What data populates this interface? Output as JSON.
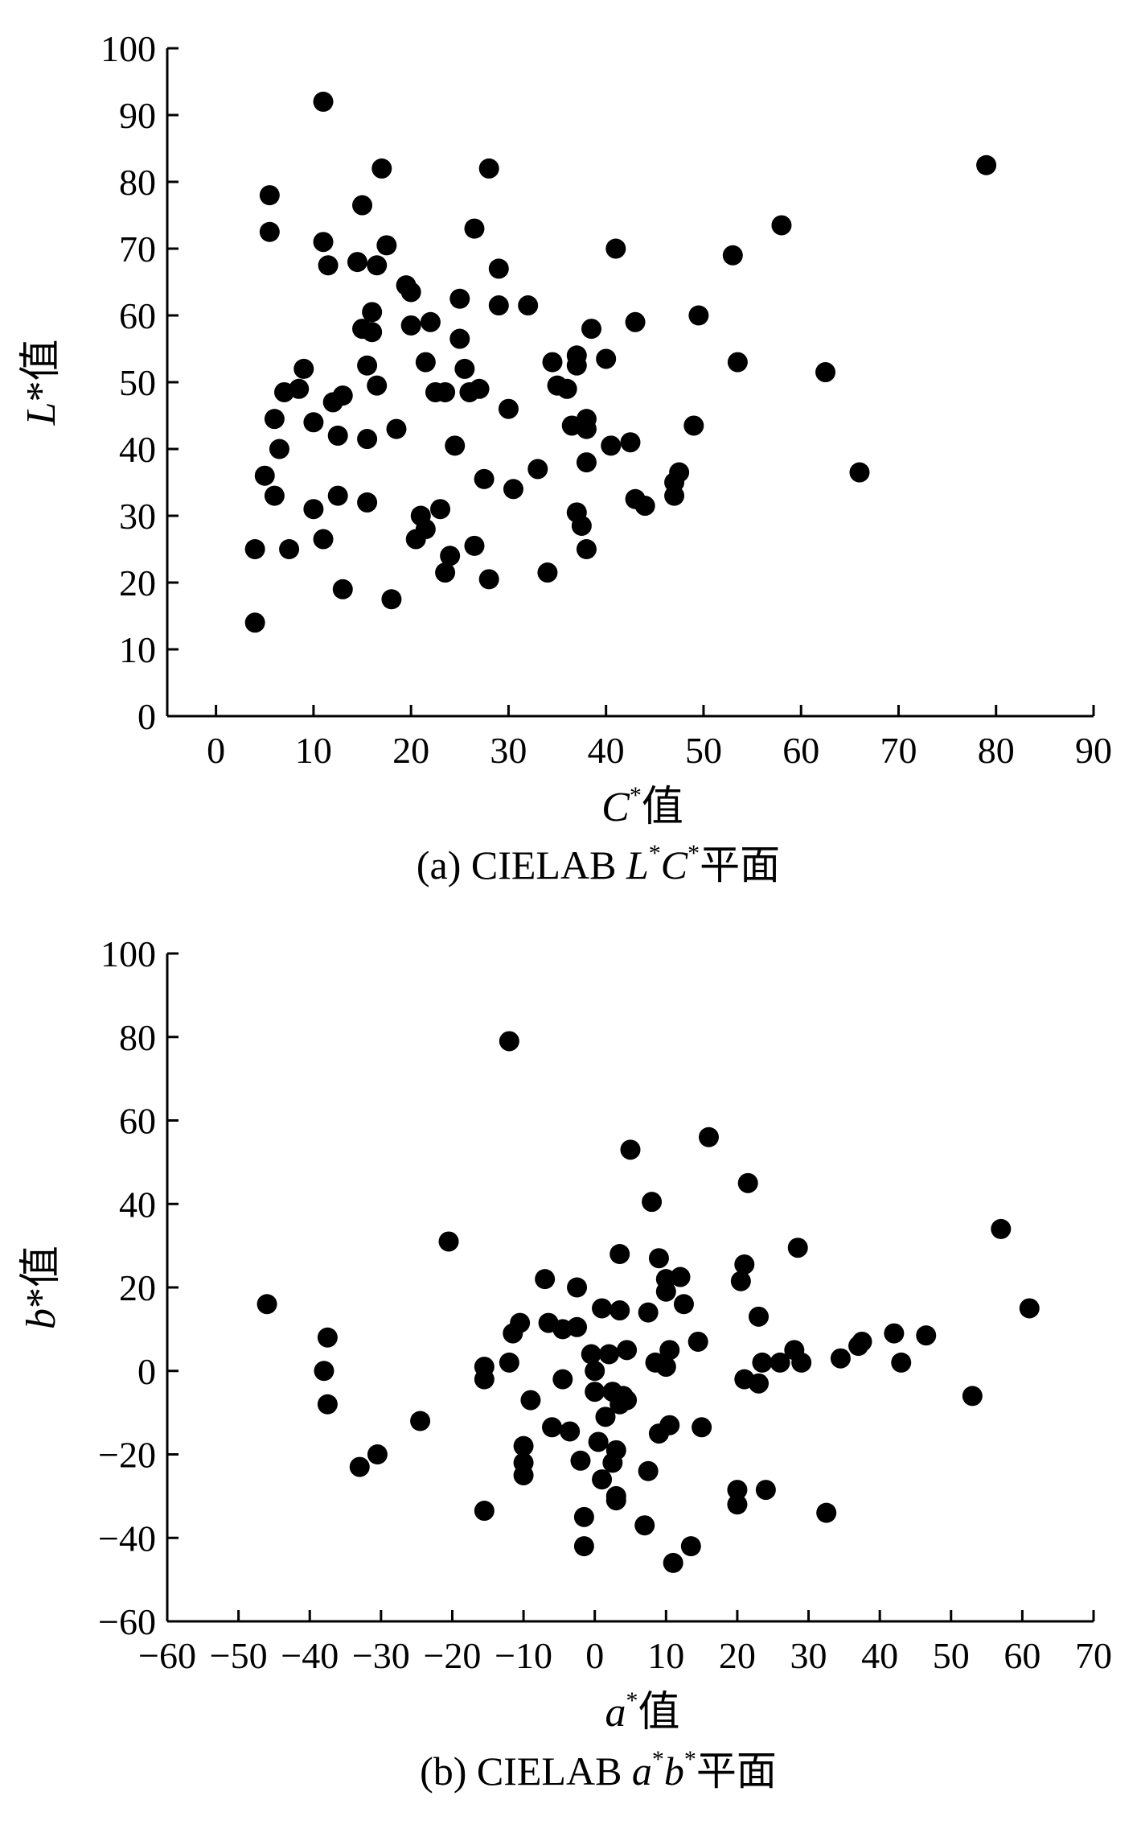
{
  "chart_data": [
    {
      "type": "scatter",
      "xlabel": {
        "var": "C",
        "sup": "*",
        "suffix": "值"
      },
      "ylabel": {
        "var": "L",
        "sup": "*",
        "suffix": "值"
      },
      "caption": {
        "prefix": "(a) CIELAB ",
        "var1": "L",
        "sup1": "*",
        "var2": "C",
        "sup2": "*",
        "suffix": "平面"
      },
      "xlim": [
        -5,
        90
      ],
      "ylim": [
        0,
        100
      ],
      "xticks": [
        0,
        10,
        20,
        30,
        40,
        50,
        60,
        70,
        80,
        90
      ],
      "yticks": [
        0,
        10,
        20,
        30,
        40,
        50,
        60,
        70,
        80,
        90,
        100
      ],
      "marker_color": "#000000",
      "points": [
        [
          4,
          14
        ],
        [
          4,
          25
        ],
        [
          5,
          36
        ],
        [
          5.5,
          72.5
        ],
        [
          5.5,
          78
        ],
        [
          6,
          33
        ],
        [
          6,
          44.5
        ],
        [
          6.5,
          40
        ],
        [
          7,
          48.5
        ],
        [
          7.5,
          25
        ],
        [
          8.5,
          49
        ],
        [
          9,
          52
        ],
        [
          10,
          31
        ],
        [
          10,
          44
        ],
        [
          11,
          26.5
        ],
        [
          11,
          71
        ],
        [
          11,
          92
        ],
        [
          11.5,
          67.5
        ],
        [
          12,
          47
        ],
        [
          12.5,
          42
        ],
        [
          12.5,
          33
        ],
        [
          13,
          19
        ],
        [
          13,
          48
        ],
        [
          14.5,
          68
        ],
        [
          15,
          58
        ],
        [
          15,
          76.5
        ],
        [
          15.5,
          52.5
        ],
        [
          15.5,
          41.5
        ],
        [
          15.5,
          32
        ],
        [
          16,
          60.5
        ],
        [
          16,
          57.5
        ],
        [
          16.5,
          49.5
        ],
        [
          16.5,
          67.5
        ],
        [
          17,
          82
        ],
        [
          17.5,
          70.5
        ],
        [
          18,
          17.5
        ],
        [
          18.5,
          43
        ],
        [
          19.5,
          64.5
        ],
        [
          20,
          63.5
        ],
        [
          20,
          58.5
        ],
        [
          20.5,
          26.5
        ],
        [
          21,
          30
        ],
        [
          21.5,
          28
        ],
        [
          21.5,
          53
        ],
        [
          22,
          59
        ],
        [
          22.5,
          48.5
        ],
        [
          23,
          31
        ],
        [
          23.5,
          21.5
        ],
        [
          23.5,
          48.5
        ],
        [
          24,
          24
        ],
        [
          24.5,
          40.5
        ],
        [
          25,
          62.5
        ],
        [
          25,
          56.5
        ],
        [
          25.5,
          52
        ],
        [
          26,
          48.5
        ],
        [
          26.5,
          25.5
        ],
        [
          26.5,
          73
        ],
        [
          27,
          49
        ],
        [
          27.5,
          35.5
        ],
        [
          28,
          20.5
        ],
        [
          28,
          82
        ],
        [
          29,
          67
        ],
        [
          29,
          61.5
        ],
        [
          30,
          46
        ],
        [
          30.5,
          34
        ],
        [
          32,
          61.5
        ],
        [
          33,
          37
        ],
        [
          34,
          21.5
        ],
        [
          34.5,
          53
        ],
        [
          35,
          49.5
        ],
        [
          36,
          49
        ],
        [
          36.5,
          43.5
        ],
        [
          37,
          54
        ],
        [
          37,
          52.5
        ],
        [
          37,
          30.5
        ],
        [
          37.5,
          28.5
        ],
        [
          38,
          25
        ],
        [
          38,
          38
        ],
        [
          38,
          44.5
        ],
        [
          38,
          43
        ],
        [
          38.5,
          58
        ],
        [
          40,
          53.5
        ],
        [
          40.5,
          40.5
        ],
        [
          41,
          70
        ],
        [
          42.5,
          41
        ],
        [
          43,
          59
        ],
        [
          43,
          32.5
        ],
        [
          44,
          31.5
        ],
        [
          47,
          33
        ],
        [
          47,
          35
        ],
        [
          47.5,
          36.5
        ],
        [
          49,
          43.5
        ],
        [
          49.5,
          60
        ],
        [
          53,
          69
        ],
        [
          53.5,
          53
        ],
        [
          58,
          73.5
        ],
        [
          62.5,
          51.5
        ],
        [
          66,
          36.5
        ],
        [
          79,
          82.5
        ]
      ]
    },
    {
      "type": "scatter",
      "xlabel": {
        "var": "a",
        "sup": "*",
        "suffix": "值"
      },
      "ylabel": {
        "var": "b",
        "sup": "*",
        "suffix": "值"
      },
      "caption": {
        "prefix": "(b) CIELAB ",
        "var1": "a",
        "sup1": "*",
        "var2": "b",
        "sup2": "*",
        "suffix": "平面"
      },
      "xlim": [
        -60,
        70
      ],
      "ylim": [
        -60,
        100
      ],
      "xticks": [
        -60,
        -50,
        -40,
        -30,
        -20,
        -10,
        0,
        10,
        20,
        30,
        40,
        50,
        60,
        70
      ],
      "yticks": [
        -60,
        -40,
        -20,
        0,
        20,
        40,
        60,
        80,
        100
      ],
      "marker_color": "#000000",
      "points": [
        [
          -46,
          16
        ],
        [
          -38,
          0
        ],
        [
          -37.5,
          8
        ],
        [
          -37.5,
          -8
        ],
        [
          -33,
          -23
        ],
        [
          -30.5,
          -20
        ],
        [
          -24.5,
          -12
        ],
        [
          -20.5,
          31
        ],
        [
          -15.5,
          1
        ],
        [
          -15.5,
          -2
        ],
        [
          -15.5,
          -33.5
        ],
        [
          -12,
          79
        ],
        [
          -12,
          2
        ],
        [
          -11.5,
          9
        ],
        [
          -10.5,
          11.5
        ],
        [
          -10,
          -18
        ],
        [
          -10,
          -22
        ],
        [
          -10,
          -25
        ],
        [
          -9,
          -7
        ],
        [
          -7,
          22
        ],
        [
          -6.5,
          11.5
        ],
        [
          -6,
          -13.5
        ],
        [
          -4.5,
          -2
        ],
        [
          -4.5,
          10
        ],
        [
          -3.5,
          -14.5
        ],
        [
          -2.5,
          20
        ],
        [
          -2.5,
          10.5
        ],
        [
          -2,
          -21.5
        ],
        [
          -1.5,
          -35
        ],
        [
          -1.5,
          -42
        ],
        [
          -0.5,
          4
        ],
        [
          0,
          0
        ],
        [
          0,
          -5
        ],
        [
          0.5,
          -17
        ],
        [
          1,
          -26
        ],
        [
          1,
          15
        ],
        [
          1.5,
          -11
        ],
        [
          2,
          4
        ],
        [
          2.5,
          -22
        ],
        [
          2.5,
          -5
        ],
        [
          3,
          -30
        ],
        [
          3,
          -31
        ],
        [
          3,
          -19
        ],
        [
          3.5,
          14.5
        ],
        [
          3.5,
          28
        ],
        [
          3.5,
          -8
        ],
        [
          4,
          -6
        ],
        [
          4.5,
          -7
        ],
        [
          4.5,
          5
        ],
        [
          5,
          53
        ],
        [
          7,
          -37
        ],
        [
          7.5,
          -24
        ],
        [
          7.5,
          14
        ],
        [
          8,
          40.5
        ],
        [
          8.5,
          2
        ],
        [
          9,
          27
        ],
        [
          9,
          -15
        ],
        [
          10,
          19
        ],
        [
          10,
          22
        ],
        [
          10,
          1
        ],
        [
          10.5,
          -13
        ],
        [
          10.5,
          5
        ],
        [
          11,
          -46
        ],
        [
          12,
          22.5
        ],
        [
          12.5,
          16
        ],
        [
          13.5,
          -42
        ],
        [
          14.5,
          7
        ],
        [
          15,
          -13.5
        ],
        [
          16,
          56
        ],
        [
          20,
          -32
        ],
        [
          20,
          -28.5
        ],
        [
          20.5,
          21.5
        ],
        [
          21,
          -2
        ],
        [
          21,
          25.5
        ],
        [
          21.5,
          45
        ],
        [
          23,
          -3
        ],
        [
          23,
          13
        ],
        [
          23.5,
          2
        ],
        [
          24,
          -28.5
        ],
        [
          26,
          2
        ],
        [
          28,
          5
        ],
        [
          28.5,
          29.5
        ],
        [
          29,
          2
        ],
        [
          32.5,
          -34
        ],
        [
          34.5,
          3
        ],
        [
          37,
          6
        ],
        [
          37.5,
          7
        ],
        [
          42,
          9
        ],
        [
          43,
          2
        ],
        [
          46.5,
          8.5
        ],
        [
          53,
          -6
        ],
        [
          57,
          34
        ],
        [
          61,
          15
        ]
      ]
    }
  ]
}
